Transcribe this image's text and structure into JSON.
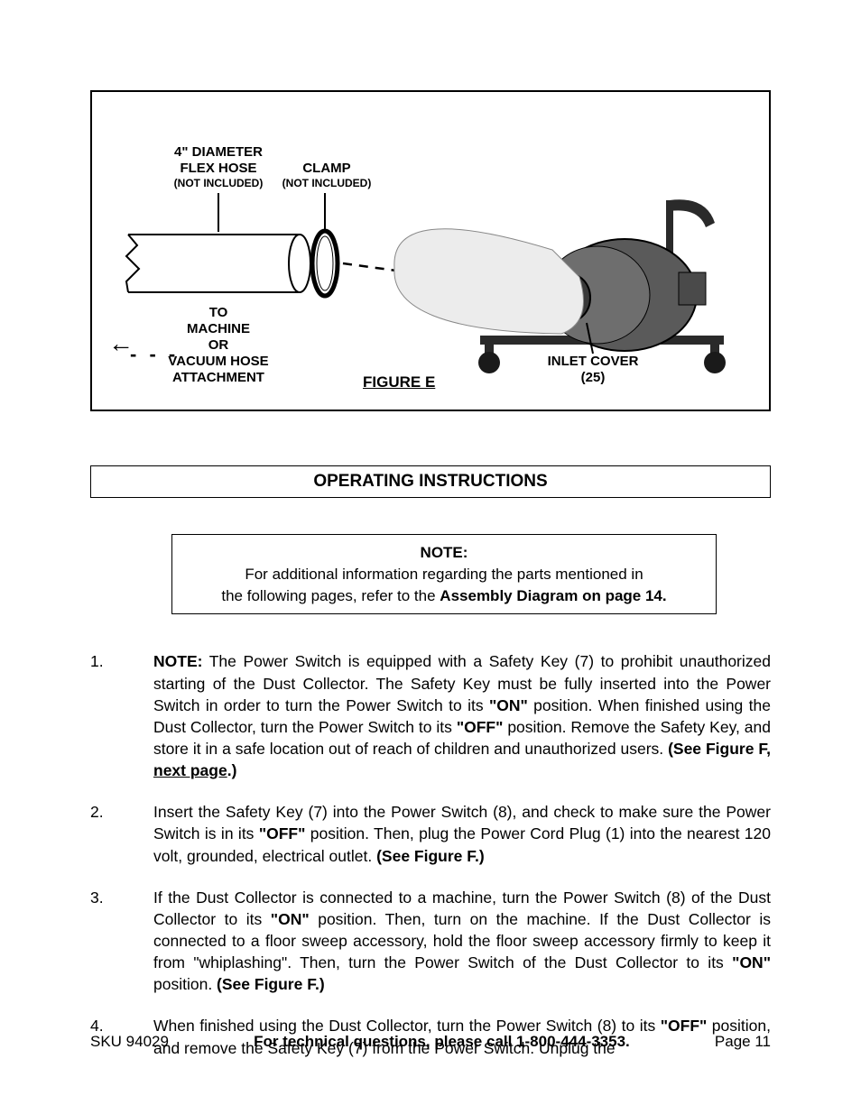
{
  "figure": {
    "hose_label": "4\" DIAMETER",
    "hose_label2": "FLEX HOSE",
    "hose_sub": "(NOT INCLUDED)",
    "clamp_label": "CLAMP",
    "clamp_sub": "(NOT INCLUDED)",
    "to_machine_l1": "TO",
    "to_machine_l2": "MACHINE",
    "to_machine_l3": "OR",
    "to_machine_l4": "VACUUM HOSE",
    "to_machine_l5": "ATTACHMENT",
    "inlet_label": "INLET COVER",
    "inlet_num": "(25)",
    "figure_title": "FIGURE E",
    "stroke": "#000000",
    "collector_fill": "#6e6e6e",
    "bag_fill": "#e8e8e8"
  },
  "section_header": "OPERATING  INSTRUCTIONS",
  "note": {
    "title": "NOTE:",
    "line1": "For additional information regarding the parts mentioned in",
    "line2_a": "the following pages, refer to the ",
    "line2_b": "Assembly Diagram on page 14."
  },
  "instructions": [
    {
      "num": "1.",
      "html": "<b>NOTE:</b>  The Power Switch is equipped with a Safety Key (7) to prohibit unauthorized starting of the Dust Collector.  The Safety Key must be fully inserted into the Power Switch in order to turn the Power Switch to its <b>\"ON\"</b> position.  When finished using the Dust Collector, turn the Power Switch to its <b>\"OFF\"</b> position. Remove the Safety Key, and store it in a safe location out of reach of children and unauthorized users.  <b>(See Figure F, <span class='underline'>next page</span>.)</b>"
    },
    {
      "num": "2.",
      "html": "Insert the Safety Key (7) into the Power Switch (8), and check to make sure the Power Switch is in its <b>\"OFF\"</b> position.  Then, plug the Power Cord Plug (1) into the nearest 120 volt, grounded, electrical outlet.  <b>(See Figure F.)</b>"
    },
    {
      "num": "3.",
      "html": "If the Dust Collector is connected to a machine, turn the Power Switch (8) of the Dust Collector to its <b>\"ON\"</b> position.  Then, turn on the machine.  If the Dust Collector is connected to a floor sweep accessory, hold the floor sweep accessory firmly to keep it from \"whiplashing\".  Then, turn the Power Switch of the Dust Collector to its <b>\"ON\"</b> position.  <b>(See Figure F.)</b>"
    },
    {
      "num": "4.",
      "html": "When finished using the Dust Collector, turn the Power Switch (8) to its <b>\"OFF\"</b> position, and remove the Safety Key (7) from the Power Switch.  Unplug the"
    }
  ],
  "footer": {
    "sku": "SKU 94029",
    "phone": "For technical questions, please call 1-800-444-3353.",
    "page": "Page 11"
  }
}
